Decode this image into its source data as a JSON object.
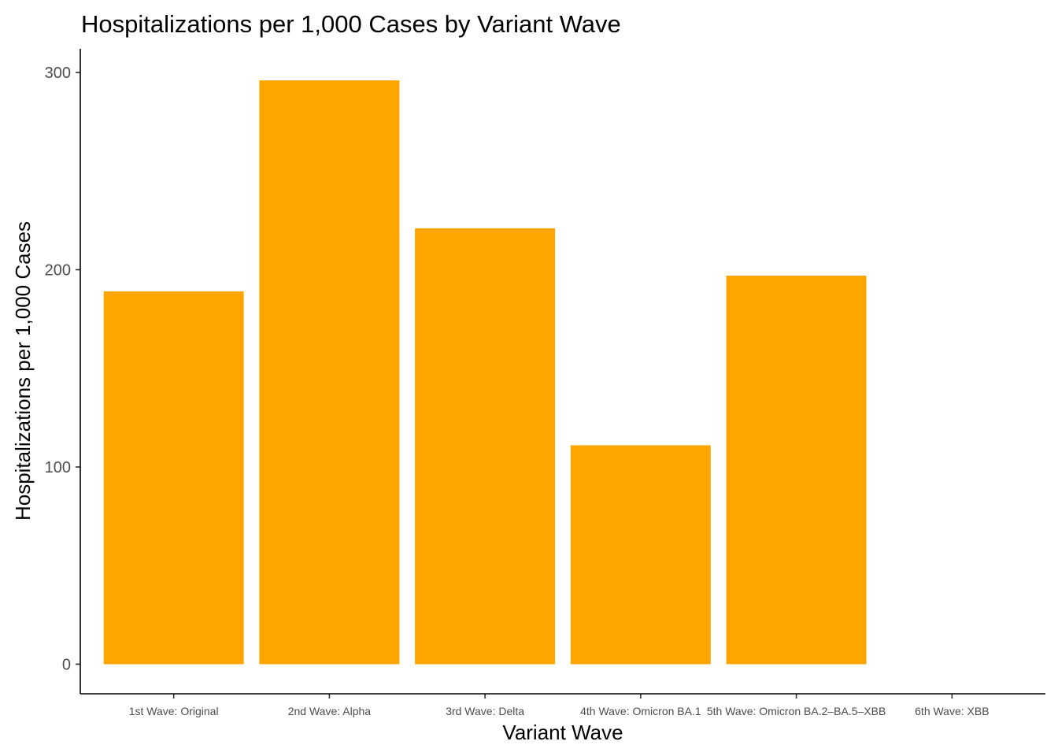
{
  "chart_data": {
    "type": "bar",
    "title": "Hospitalizations per 1,000 Cases by Variant Wave",
    "xlabel": "Variant Wave",
    "ylabel": "Hospitalizations per 1,000 Cases",
    "categories": [
      "1st Wave: Original",
      "2nd Wave: Alpha",
      "3rd Wave: Delta",
      "4th Wave: Omicron BA.1",
      "5th Wave: Omicron BA.2–BA.5–XBB",
      "6th Wave: XBB"
    ],
    "values": [
      189,
      296,
      221,
      111,
      197,
      null
    ],
    "ylim": [
      -15,
      312
    ],
    "yticks": [
      0,
      100,
      200,
      300
    ],
    "bar_color": "#FFA500",
    "grid": false,
    "legend": "none"
  }
}
